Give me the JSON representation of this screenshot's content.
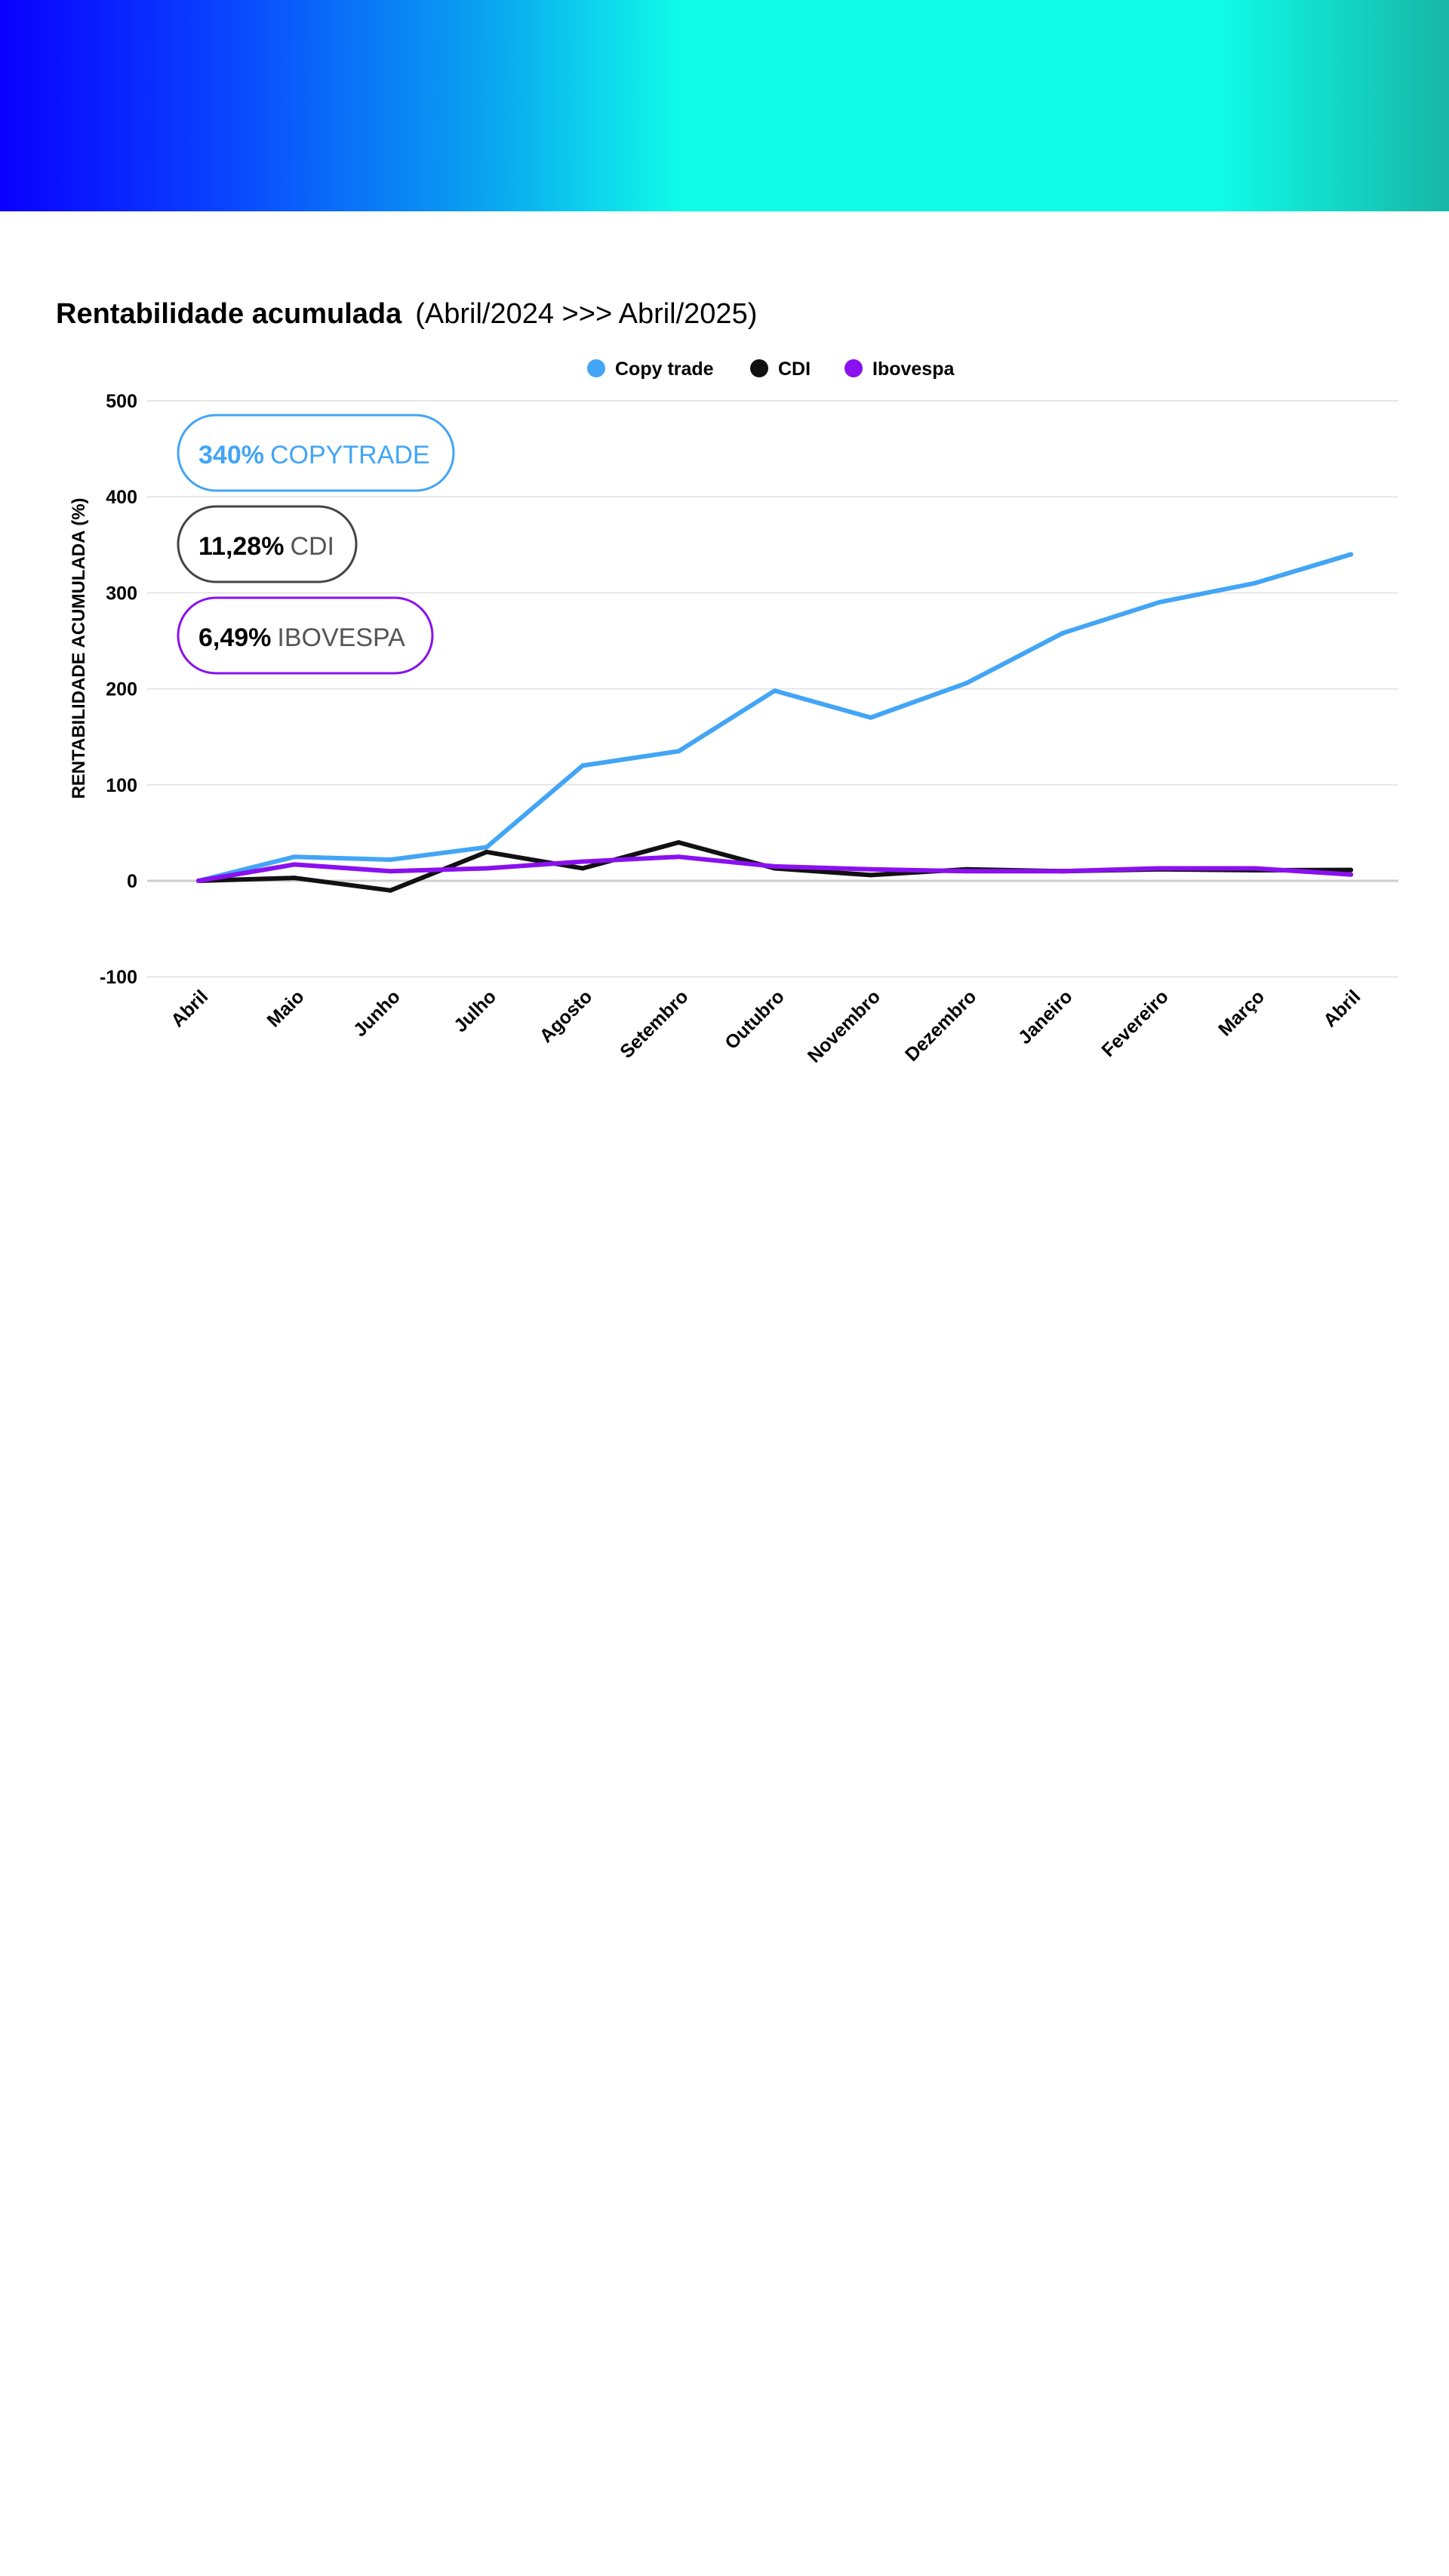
{
  "colors": {
    "copytrade": "#42a5f5",
    "cdi": "#111111",
    "ibovespa": "#8a10f0",
    "grid": "#e6e6e6",
    "zero_line": "#cfcfcf"
  },
  "title": {
    "main": "Rentabilidade acumulada",
    "period": "(Abril/2024 >>> Abril/2025)"
  },
  "badges": [
    {
      "value": "340%",
      "label": "COPYTRADE",
      "series": "copytrade"
    },
    {
      "value": "11,28%",
      "label": "CDI",
      "series": "cdi"
    },
    {
      "value": "6,49%",
      "label": "IBOVESPA",
      "series": "ibovespa"
    }
  ],
  "chart_data": {
    "type": "line",
    "title": "Rentabilidade acumulada",
    "subtitle": "(Abril/2024 >>> Abril/2025)",
    "xlabel": "",
    "ylabel": "RENTABILIDADE ACUMULADA (%)",
    "ylim": [
      -100,
      500
    ],
    "yticks": [
      -100,
      0,
      100,
      200,
      300,
      400,
      500
    ],
    "grid": true,
    "legend_position": "top-center",
    "categories": [
      "Abril",
      "Maio",
      "Junho",
      "Julho",
      "Agosto",
      "Setembro",
      "Outubro",
      "Novembro",
      "Dezembro",
      "Janeiro",
      "Fevereiro",
      "Março",
      "Abril"
    ],
    "series": [
      {
        "name": "Copy trade",
        "key": "copytrade",
        "values": [
          0,
          25,
          22,
          35,
          120,
          135,
          198,
          170,
          206,
          258,
          290,
          310,
          340
        ]
      },
      {
        "name": "CDI",
        "key": "cdi",
        "values": [
          0,
          3,
          -10,
          30,
          13,
          40,
          13,
          6,
          12,
          10,
          12,
          11,
          11.28
        ]
      },
      {
        "name": "Ibovespa",
        "key": "ibovespa",
        "values": [
          0,
          17,
          10,
          13,
          20,
          25,
          15,
          12,
          10,
          10,
          13,
          13,
          6.49
        ]
      }
    ]
  }
}
